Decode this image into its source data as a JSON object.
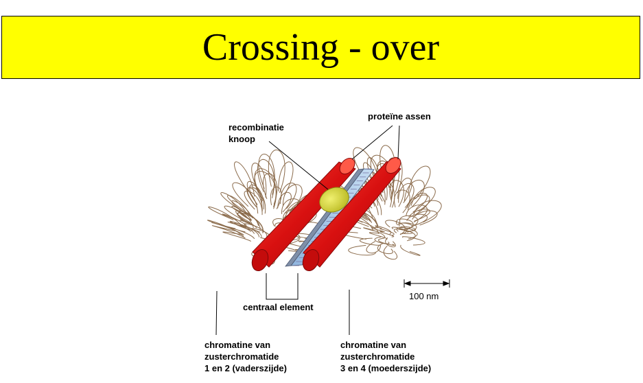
{
  "title": "Crossing - over",
  "labels": {
    "recombination_node": "recombinatie\nknoop",
    "protein_axes": "proteïne assen",
    "central_element": "centraal element",
    "scale": "100 nm",
    "chromatin_left": "chromatine van\nzusterchromatide\n1 en 2 (vaderszijde)",
    "chromatin_right": "chromatine van\nzusterchromatide\n3 en 4 (moederszijde)"
  },
  "colors": {
    "title_background": "#ffff00",
    "axis_red": "#e01010",
    "central_element_blue": "#a8c8e8",
    "recombination_node_yellow": "#d8d838",
    "chromatin_loops": "#8a6a4a"
  }
}
